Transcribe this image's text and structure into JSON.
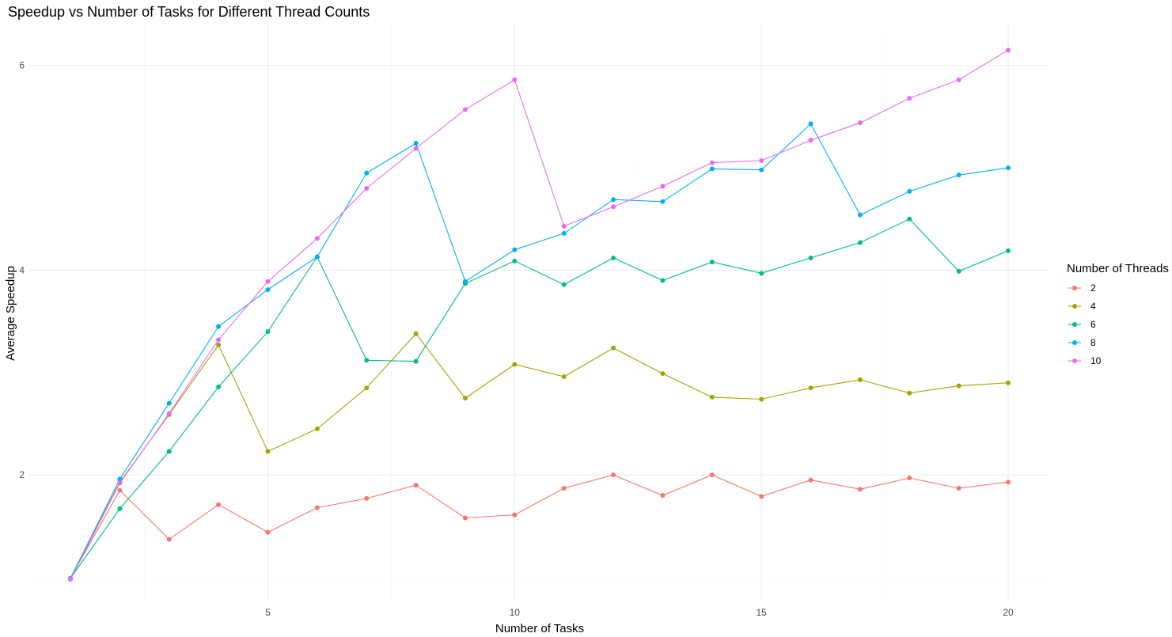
{
  "chart_data": {
    "type": "line",
    "title": "Speedup vs Number of Tasks for Different Thread Counts",
    "xlabel": "Number of Tasks",
    "ylabel": "Average Speedup",
    "x": [
      1,
      2,
      3,
      4,
      5,
      6,
      7,
      8,
      9,
      10,
      11,
      12,
      13,
      14,
      15,
      16,
      17,
      18,
      19,
      20
    ],
    "xlim": [
      0.15,
      20.85
    ],
    "ylim": [
      0.78,
      6.4
    ],
    "x_ticks": [
      5,
      10,
      15,
      20
    ],
    "y_ticks": [
      2,
      4,
      6
    ],
    "grid": true,
    "legend": {
      "title": "Number of Threads",
      "placement": "right"
    },
    "series": [
      {
        "name": "2",
        "color": "#F8766D",
        "values": [
          0.99,
          1.85,
          1.37,
          1.71,
          1.44,
          1.68,
          1.77,
          1.9,
          1.58,
          1.61,
          1.87,
          2.0,
          1.8,
          2.0,
          1.79,
          1.95,
          1.86,
          1.97,
          1.87,
          1.93
        ]
      },
      {
        "name": "4",
        "color": "#A3A500",
        "values": [
          0.99,
          1.93,
          2.59,
          3.27,
          2.23,
          2.45,
          2.85,
          3.38,
          2.75,
          3.08,
          2.96,
          3.24,
          2.99,
          2.76,
          2.74,
          2.85,
          2.93,
          2.8,
          2.87,
          2.9
        ]
      },
      {
        "name": "6",
        "color": "#00BF7D",
        "values": [
          0.99,
          1.67,
          2.23,
          2.86,
          3.4,
          4.13,
          3.12,
          3.11,
          3.87,
          4.09,
          3.86,
          4.12,
          3.9,
          4.08,
          3.97,
          4.12,
          4.27,
          4.5,
          3.99,
          4.19
        ]
      },
      {
        "name": "8",
        "color": "#00B0F6",
        "values": [
          0.99,
          1.96,
          2.7,
          3.45,
          3.81,
          4.13,
          4.95,
          5.24,
          3.89,
          4.2,
          4.36,
          4.69,
          4.67,
          4.99,
          4.98,
          5.43,
          4.54,
          4.77,
          4.93,
          5.0
        ]
      },
      {
        "name": "10",
        "color": "#E76BF3",
        "values": [
          0.98,
          1.92,
          2.6,
          3.32,
          3.89,
          4.31,
          4.8,
          5.19,
          5.57,
          5.86,
          4.43,
          4.62,
          4.82,
          5.05,
          5.07,
          5.27,
          5.44,
          5.68,
          5.86,
          6.15
        ]
      }
    ]
  }
}
